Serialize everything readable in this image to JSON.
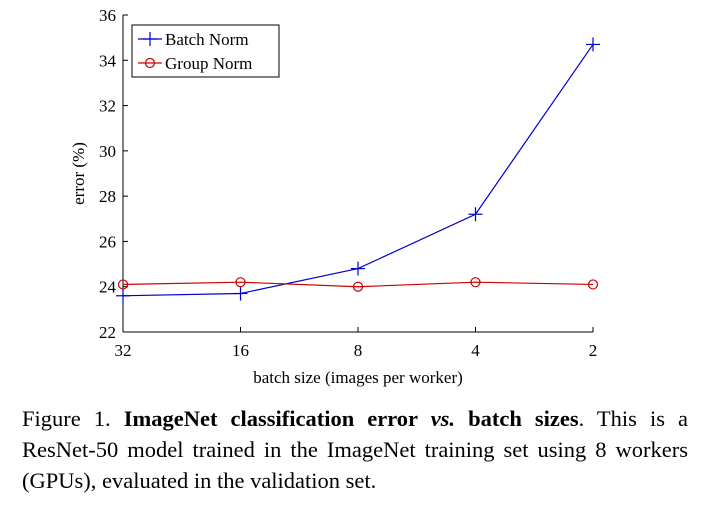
{
  "chart_data": {
    "type": "line",
    "categories": [
      "32",
      "16",
      "8",
      "4",
      "2"
    ],
    "series": [
      {
        "name": "Batch Norm",
        "values": [
          23.6,
          23.7,
          24.8,
          27.2,
          34.7
        ],
        "color": "#0000cc",
        "marker": "plus"
      },
      {
        "name": "Group Norm",
        "values": [
          24.1,
          24.2,
          24.0,
          24.2,
          24.1
        ],
        "color": "#cc0000",
        "marker": "circle"
      }
    ],
    "xlabel": "batch size (images per worker)",
    "ylabel": "error (%)",
    "ylim": [
      22,
      36
    ],
    "yticks": [
      "22",
      "24",
      "26",
      "28",
      "30",
      "32",
      "34",
      "36"
    ],
    "grid": false,
    "legend_position": "top-left"
  },
  "caption": {
    "prefix": "Figure 1. ",
    "bold1": "ImageNet classification error ",
    "italic": "vs.",
    "bold2": " batch sizes",
    "rest": ". This is a ResNet-50 model trained in the ImageNet training set using 8 workers (GPUs), evaluated in the validation set."
  }
}
